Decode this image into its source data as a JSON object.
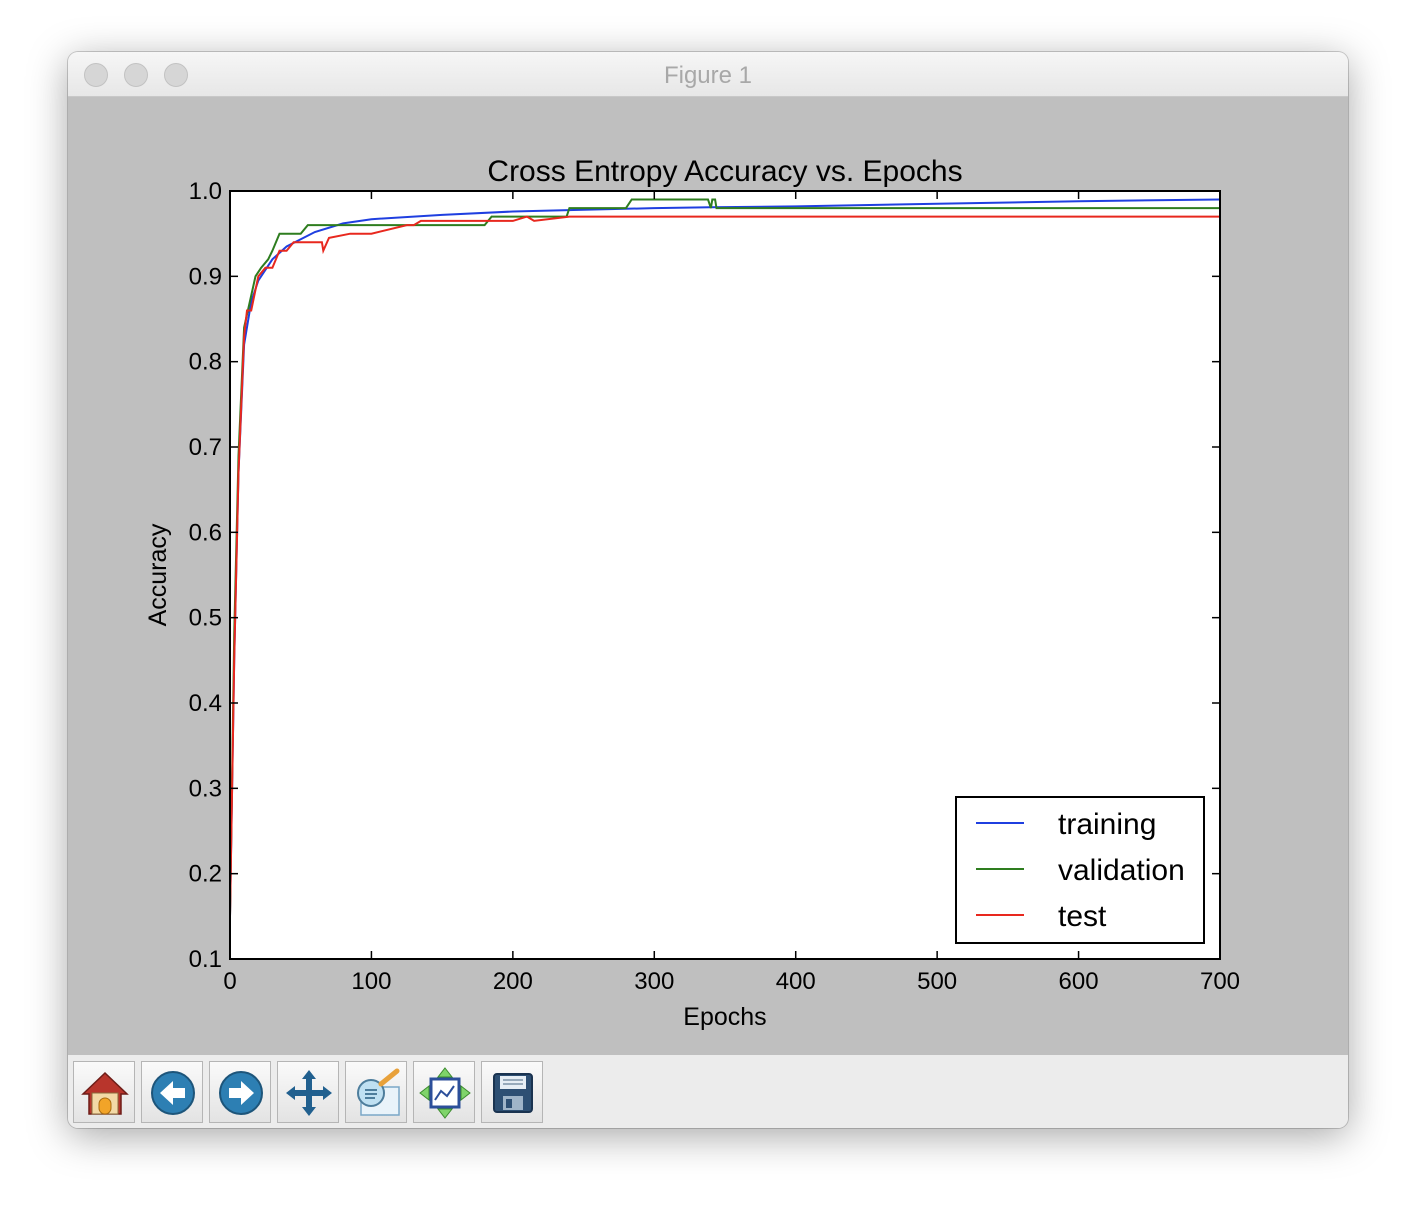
{
  "window": {
    "title": "Figure 1"
  },
  "toolbar": {
    "buttons": [
      {
        "icon": "home-icon"
      },
      {
        "icon": "back-arrow-icon"
      },
      {
        "icon": "forward-arrow-icon"
      },
      {
        "icon": "pan-icon"
      },
      {
        "icon": "zoom-icon"
      },
      {
        "icon": "configure-subplots-icon"
      },
      {
        "icon": "save-icon"
      }
    ]
  },
  "chart_data": {
    "type": "line",
    "title": "Cross Entropy Accuracy vs. Epochs",
    "xlabel": "Epochs",
    "ylabel": "Accuracy",
    "xlim": [
      0,
      700
    ],
    "ylim": [
      0.1,
      1.0
    ],
    "xticks": [
      0,
      100,
      200,
      300,
      400,
      500,
      600,
      700
    ],
    "yticks": [
      0.1,
      0.2,
      0.3,
      0.4,
      0.5,
      0.6,
      0.7,
      0.8,
      0.9,
      1.0
    ],
    "grid": false,
    "legend": "lower-right",
    "series": [
      {
        "name": "training",
        "color": "#1f3fe0",
        "x": [
          0,
          3,
          6,
          10,
          15,
          20,
          30,
          40,
          60,
          80,
          100,
          150,
          200,
          250,
          300,
          340,
          400,
          500,
          600,
          700
        ],
        "y": [
          0.15,
          0.45,
          0.67,
          0.82,
          0.87,
          0.895,
          0.92,
          0.935,
          0.952,
          0.962,
          0.967,
          0.972,
          0.976,
          0.978,
          0.98,
          0.981,
          0.982,
          0.985,
          0.988,
          0.99
        ]
      },
      {
        "name": "validation",
        "color": "#2e7d1f",
        "x": [
          0,
          3,
          6,
          10,
          14,
          18,
          22,
          27,
          30,
          35,
          50,
          55,
          60,
          180,
          185,
          238,
          240,
          280,
          284,
          338,
          340,
          341,
          343,
          344,
          700
        ],
        "y": [
          0.15,
          0.48,
          0.69,
          0.84,
          0.87,
          0.9,
          0.91,
          0.92,
          0.93,
          0.95,
          0.95,
          0.96,
          0.96,
          0.96,
          0.97,
          0.97,
          0.98,
          0.98,
          0.99,
          0.99,
          0.98,
          0.99,
          0.99,
          0.98,
          0.98
        ]
      },
      {
        "name": "test",
        "color": "#e8281e",
        "x": [
          0,
          3,
          6,
          10,
          12,
          15,
          20,
          25,
          30,
          35,
          40,
          45,
          50,
          65,
          66,
          70,
          85,
          100,
          125,
          130,
          135,
          150,
          200,
          210,
          215,
          240,
          241,
          700
        ],
        "y": [
          0.15,
          0.45,
          0.67,
          0.83,
          0.86,
          0.86,
          0.9,
          0.91,
          0.91,
          0.93,
          0.93,
          0.94,
          0.94,
          0.94,
          0.93,
          0.945,
          0.95,
          0.95,
          0.96,
          0.96,
          0.965,
          0.965,
          0.965,
          0.97,
          0.965,
          0.97,
          0.97,
          0.97
        ]
      }
    ]
  }
}
